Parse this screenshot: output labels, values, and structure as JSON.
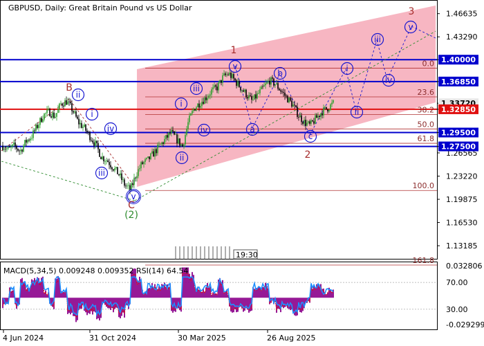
{
  "header": {
    "title": "GBPUSD, Daily:  Great Britain Pound vs US Dollar"
  },
  "colors": {
    "channel_fill": "#f7b6c2",
    "blue_line": "#0000cd",
    "red_line": "#e01010",
    "fib_line": "#b03030",
    "wave_blue": "#1515d0",
    "wave_red": "#a52a2a",
    "wave_green": "#2e8b2e",
    "macd_hist": "#8b008b",
    "rsi_line": "#1e90ff",
    "signal_line": "#e01010",
    "bull_candle": "#2ca02c",
    "bear_candle": "#000000"
  },
  "price_axis": {
    "ticks": [
      "1.46635",
      "1.43290",
      "1.40000",
      "1.36850",
      "1.33720",
      "1.32850",
      "1.29500",
      "1.27500",
      "1.26565",
      "1.23220",
      "1.19875",
      "1.16530",
      "1.13185"
    ],
    "boxed_levels": [
      {
        "label": "1.40000",
        "value": 1.4,
        "box": "blue"
      },
      {
        "label": "1.36850",
        "value": 1.3685,
        "box": "blue"
      },
      {
        "label": "1.33720",
        "value": 1.3372,
        "box": "gray"
      },
      {
        "label": "1.32850",
        "value": 1.3285,
        "box": "red"
      },
      {
        "label": "1.29500",
        "value": 1.295,
        "box": "blue"
      },
      {
        "label": "1.27500",
        "value": 1.275,
        "box": "blue"
      }
    ]
  },
  "time_axis": {
    "labels": [
      "4 Jun 2024",
      "31 Oct 2024",
      "30 Mar 2025",
      "26 Aug 2025"
    ]
  },
  "fibonacci": [
    {
      "label": "0.0",
      "value": 1.3877
    },
    {
      "label": "23.6",
      "value": 1.3464
    },
    {
      "label": "38.2",
      "value": 1.3208
    },
    {
      "label": "50.0",
      "value": 1.3002
    },
    {
      "label": "61.8",
      "value": 1.2795
    },
    {
      "label": "100.0",
      "value": 1.2115
    },
    {
      "label": "161.8",
      "value": 1.104
    }
  ],
  "wave_labels": {
    "red": [
      "B",
      "C",
      "1",
      "2",
      "3"
    ],
    "green": [
      "(2)"
    ],
    "blue": [
      "i",
      "ii",
      "iii",
      "iv",
      "v",
      "a",
      "b",
      "c"
    ]
  },
  "timer": "19:30",
  "indicator": {
    "label": "MACD(5,34,5) 0.009248 0.009352 RSI(14) 64.54",
    "ticks": [
      "0.032806",
      "70.00",
      "30.00",
      "-0.029299"
    ]
  },
  "chart_data": {
    "type": "candlestick",
    "title": "GBPUSD, Daily:  Great Britain Pound vs US Dollar",
    "ylim": [
      1.112,
      1.486
    ],
    "key_levels": [
      1.4,
      1.3685,
      1.3285,
      1.295,
      1.275
    ],
    "current_price": 1.3372,
    "wave_points": [
      {
        "label": "B",
        "price": 1.343
      },
      {
        "label": "C",
        "price": 1.21
      },
      {
        "label": "1",
        "price": 1.379
      },
      {
        "label": "2",
        "price": 1.3
      },
      {
        "label": "3",
        "price": 1.475
      }
    ],
    "close_path": [
      1.276,
      1.27,
      1.276,
      1.268,
      1.282,
      1.29,
      1.305,
      1.32,
      1.325,
      1.318,
      1.336,
      1.34,
      1.328,
      1.31,
      1.302,
      1.29,
      1.278,
      1.26,
      1.255,
      1.245,
      1.235,
      1.22,
      1.212,
      1.235,
      1.25,
      1.255,
      1.265,
      1.275,
      1.285,
      1.295,
      1.285,
      1.275,
      1.31,
      1.33,
      1.338,
      1.345,
      1.355,
      1.36,
      1.375,
      1.38,
      1.37,
      1.36,
      1.35,
      1.34,
      1.35,
      1.36,
      1.37,
      1.365,
      1.355,
      1.345,
      1.335,
      1.32,
      1.31,
      1.305,
      1.315,
      1.325,
      1.33,
      1.3372
    ],
    "macd": {
      "value": 0.009248,
      "signal": 0.009352,
      "ylim": [
        -0.029299,
        0.032806
      ]
    },
    "rsi": {
      "value": 64.54,
      "levels": [
        70,
        30
      ]
    }
  }
}
